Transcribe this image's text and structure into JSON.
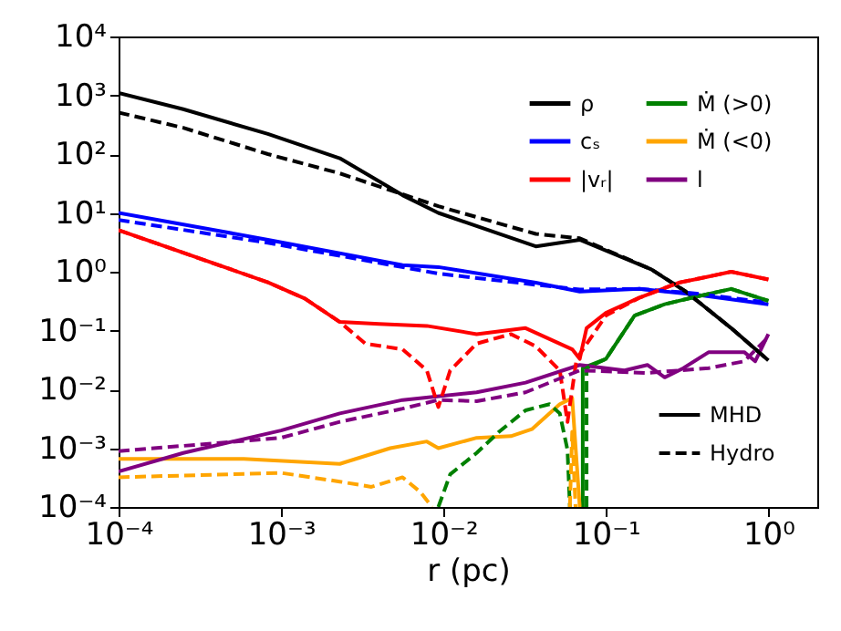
{
  "chart_data": {
    "type": "line",
    "xlabel": "r (pc)",
    "log": "xy",
    "grid": false,
    "legend": "top right",
    "xlim": [
      0.0001,
      2
    ],
    "ylim": [
      0.0001,
      10000
    ],
    "xticks": [
      {
        "value": 0.0001,
        "label": "10⁻⁴"
      },
      {
        "value": 0.001,
        "label": "10⁻³"
      },
      {
        "value": 0.01,
        "label": "10⁻²"
      },
      {
        "value": 0.1,
        "label": "10⁻¹"
      },
      {
        "value": 1,
        "label": "10⁰"
      }
    ],
    "yticks": [
      {
        "value": 0.0001,
        "label": "10⁻⁴"
      },
      {
        "value": 0.001,
        "label": "10⁻³"
      },
      {
        "value": 0.01,
        "label": "10⁻²"
      },
      {
        "value": 0.1,
        "label": "10⁻¹"
      },
      {
        "value": 1,
        "label": "10⁰"
      },
      {
        "value": 10,
        "label": "10¹"
      },
      {
        "value": 100,
        "label": "10²"
      },
      {
        "value": 1000,
        "label": "10³"
      },
      {
        "value": 10000,
        "label": "10⁴"
      }
    ],
    "annotations": [
      "MHD",
      "Hydro"
    ],
    "series": [
      {
        "name": "ρ",
        "color": "#000000",
        "line_style": "solid",
        "x": [
          0.0001,
          0.00025,
          0.00083,
          0.0023,
          0.0056,
          0.0093,
          0.037,
          0.069,
          0.19,
          0.31,
          0.59,
          1
        ],
        "values": [
          1100,
          580,
          220,
          85,
          20,
          10,
          2.7,
          3.5,
          1.1,
          0.46,
          0.11,
          0.031
        ]
      },
      {
        "name": "cₛ",
        "color": "#0000ff",
        "line_style": "solid",
        "x": [
          0.0001,
          0.00083,
          0.0056,
          0.0093,
          0.037,
          0.069,
          0.16,
          0.35,
          1
        ],
        "values": [
          10,
          3.5,
          1.3,
          1.2,
          0.65,
          0.46,
          0.51,
          0.41,
          0.28
        ]
      },
      {
        "name": "|vᵣ|",
        "color": "#ff0000",
        "line_style": "solid",
        "x": [
          0.0001,
          0.00083,
          0.0014,
          0.0023,
          0.004,
          0.0079,
          0.016,
          0.032,
          0.062,
          0.069,
          0.076,
          0.1,
          0.16,
          0.28,
          0.43,
          0.59,
          1
        ],
        "values": [
          5.1,
          0.66,
          0.35,
          0.14,
          0.13,
          0.12,
          0.087,
          0.11,
          0.048,
          0.033,
          0.11,
          0.2,
          0.36,
          0.65,
          0.83,
          1.0,
          0.74
        ]
      },
      {
        "name": "Ṁ (>0)",
        "color": "#008000",
        "line_style": "solid",
        "x": [
          0.072,
          0.072,
          0.1,
          0.15,
          0.23,
          0.35,
          0.59,
          1
        ],
        "values": [
          0.0001,
          0.023,
          0.033,
          0.18,
          0.28,
          0.37,
          0.51,
          0.32
        ]
      },
      {
        "name": "Ṁ (<0)",
        "color": "#ffa500",
        "line_style": "solid",
        "x": [
          0.0001,
          0.00059,
          0.0023,
          0.0047,
          0.0079,
          0.0093,
          0.016,
          0.026,
          0.035,
          0.052,
          0.062,
          0.069
        ],
        "values": [
          0.00066,
          0.00066,
          0.00054,
          0.001,
          0.0013,
          0.001,
          0.0015,
          0.0016,
          0.0021,
          0.0056,
          0.0071,
          0.0001
        ]
      },
      {
        "name": "l",
        "color": "#800080",
        "line_style": "solid",
        "x": [
          0.0001,
          0.00025,
          0.001,
          0.0023,
          0.0056,
          0.016,
          0.032,
          0.069,
          0.13,
          0.18,
          0.23,
          0.3,
          0.43,
          0.71,
          0.83,
          1
        ],
        "values": [
          0.0004,
          0.00083,
          0.002,
          0.0039,
          0.0066,
          0.0089,
          0.013,
          0.026,
          0.021,
          0.026,
          0.016,
          0.023,
          0.043,
          0.043,
          0.03,
          0.087
        ]
      },
      {
        "color": "#000000",
        "line_style": "dashed",
        "x": [
          0.0001,
          0.00025,
          0.00083,
          0.0023,
          0.0093,
          0.037,
          0.069,
          0.19,
          0.31,
          0.59,
          1
        ],
        "values": [
          510,
          280,
          100,
          47,
          13,
          4.4,
          3.7,
          1.1,
          0.46,
          0.11,
          0.031
        ]
      },
      {
        "color": "#0000ff",
        "line_style": "dashed",
        "x": [
          0.0001,
          0.00083,
          0.0093,
          0.037,
          0.069,
          0.16,
          0.35,
          1
        ],
        "values": [
          7.6,
          3.1,
          0.93,
          0.6,
          0.5,
          0.51,
          0.43,
          0.3
        ]
      },
      {
        "color": "#ff0000",
        "line_style": "dashed",
        "x": [
          0.0001,
          0.00083,
          0.0014,
          0.0023,
          0.0033,
          0.0056,
          0.0079,
          0.0093,
          0.011,
          0.016,
          0.026,
          0.037,
          0.052,
          0.058,
          0.066,
          0.1,
          0.16,
          0.28,
          0.43,
          0.59,
          1
        ],
        "values": [
          5.1,
          0.66,
          0.35,
          0.14,
          0.06,
          0.048,
          0.021,
          0.005,
          0.021,
          0.06,
          0.087,
          0.054,
          0.021,
          0.0028,
          0.033,
          0.18,
          0.36,
          0.65,
          0.83,
          1.0,
          0.74
        ]
      },
      {
        "color": "#008000",
        "line_style": "dashed",
        "x": [
          0.0093,
          0.011,
          0.016,
          0.022,
          0.032,
          0.045,
          0.052,
          0.058,
          0.06,
          0.068,
          0.076,
          0.076,
          0.1,
          0.15,
          0.23,
          0.35,
          0.59,
          1
        ],
        "values": [
          0.0001,
          0.00036,
          0.00083,
          0.0019,
          0.0044,
          0.0056,
          0.0039,
          0.00093,
          0.0001,
          null,
          0.0001,
          0.023,
          0.033,
          0.18,
          0.28,
          0.37,
          0.51,
          0.32
        ]
      },
      {
        "color": "#ffa500",
        "line_style": "dashed",
        "x": [
          0.0001,
          0.001,
          0.0023,
          0.0036,
          0.0056,
          0.0072,
          0.0085,
          0.03,
          0.06,
          0.062,
          0.065
        ],
        "values": [
          0.00032,
          0.00038,
          0.00027,
          0.00022,
          0.00032,
          0.00018,
          0.0001,
          null,
          0.0001,
          0.0019,
          0.0001
        ]
      },
      {
        "color": "#800080",
        "line_style": "dashed",
        "x": [
          0.0001,
          0.001,
          0.0023,
          0.0056,
          0.0093,
          0.016,
          0.032,
          0.069,
          0.18,
          0.43,
          0.71,
          1
        ],
        "values": [
          0.00089,
          0.0015,
          0.0028,
          0.0047,
          0.0066,
          0.0063,
          0.0089,
          0.021,
          0.019,
          0.023,
          0.03,
          0.078
        ]
      }
    ]
  }
}
